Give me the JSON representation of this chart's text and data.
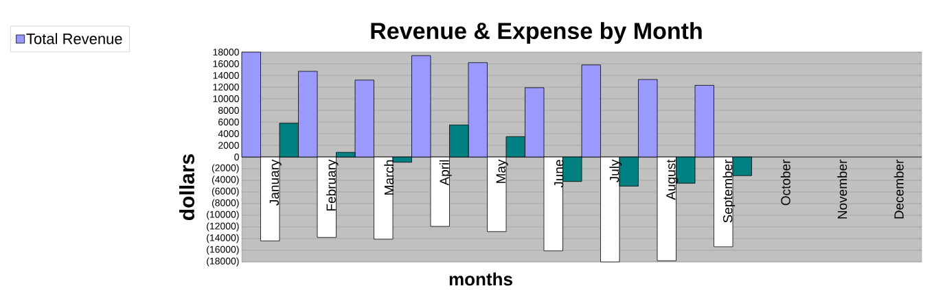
{
  "chart_data": {
    "type": "bar",
    "title": "Revenue & Expense by Month",
    "xlabel": "months",
    "ylabel": "dollars",
    "categories": [
      "January",
      "February",
      "March",
      "April",
      "May",
      "June",
      "July",
      "August",
      "September",
      "October",
      "November",
      "December"
    ],
    "series": [
      {
        "name": "Total Revenue",
        "color": "#9999ff",
        "values": [
          18000,
          14700,
          13200,
          17400,
          16200,
          11900,
          15800,
          13300,
          12300,
          null,
          null,
          null
        ]
      },
      {
        "color": "#ffffff",
        "values": [
          -14400,
          -13800,
          -14100,
          -11900,
          -12800,
          -16100,
          -18000,
          -17800,
          -15400,
          null,
          null,
          null
        ]
      },
      {
        "color": "#008080",
        "values": [
          5800,
          800,
          -900,
          5500,
          3500,
          -4200,
          -5000,
          -4500,
          -3200,
          null,
          null,
          null
        ]
      }
    ],
    "ylim": [
      -18000,
      18000
    ],
    "yticks": [
      {
        "value": -18000,
        "label": "(18000)"
      },
      {
        "value": -16000,
        "label": "(16000)"
      },
      {
        "value": -14000,
        "label": "(14000)"
      },
      {
        "value": -12000,
        "label": "(12000)"
      },
      {
        "value": -10000,
        "label": "(10000)"
      },
      {
        "value": -8000,
        "label": "(8000)"
      },
      {
        "value": -6000,
        "label": "(6000)"
      },
      {
        "value": -4000,
        "label": "(4000)"
      },
      {
        "value": -2000,
        "label": "(2000)"
      },
      0,
      2000,
      4000,
      6000,
      8000,
      10000,
      12000,
      14000,
      16000,
      18000
    ],
    "grid": "y",
    "legend": "top left"
  }
}
